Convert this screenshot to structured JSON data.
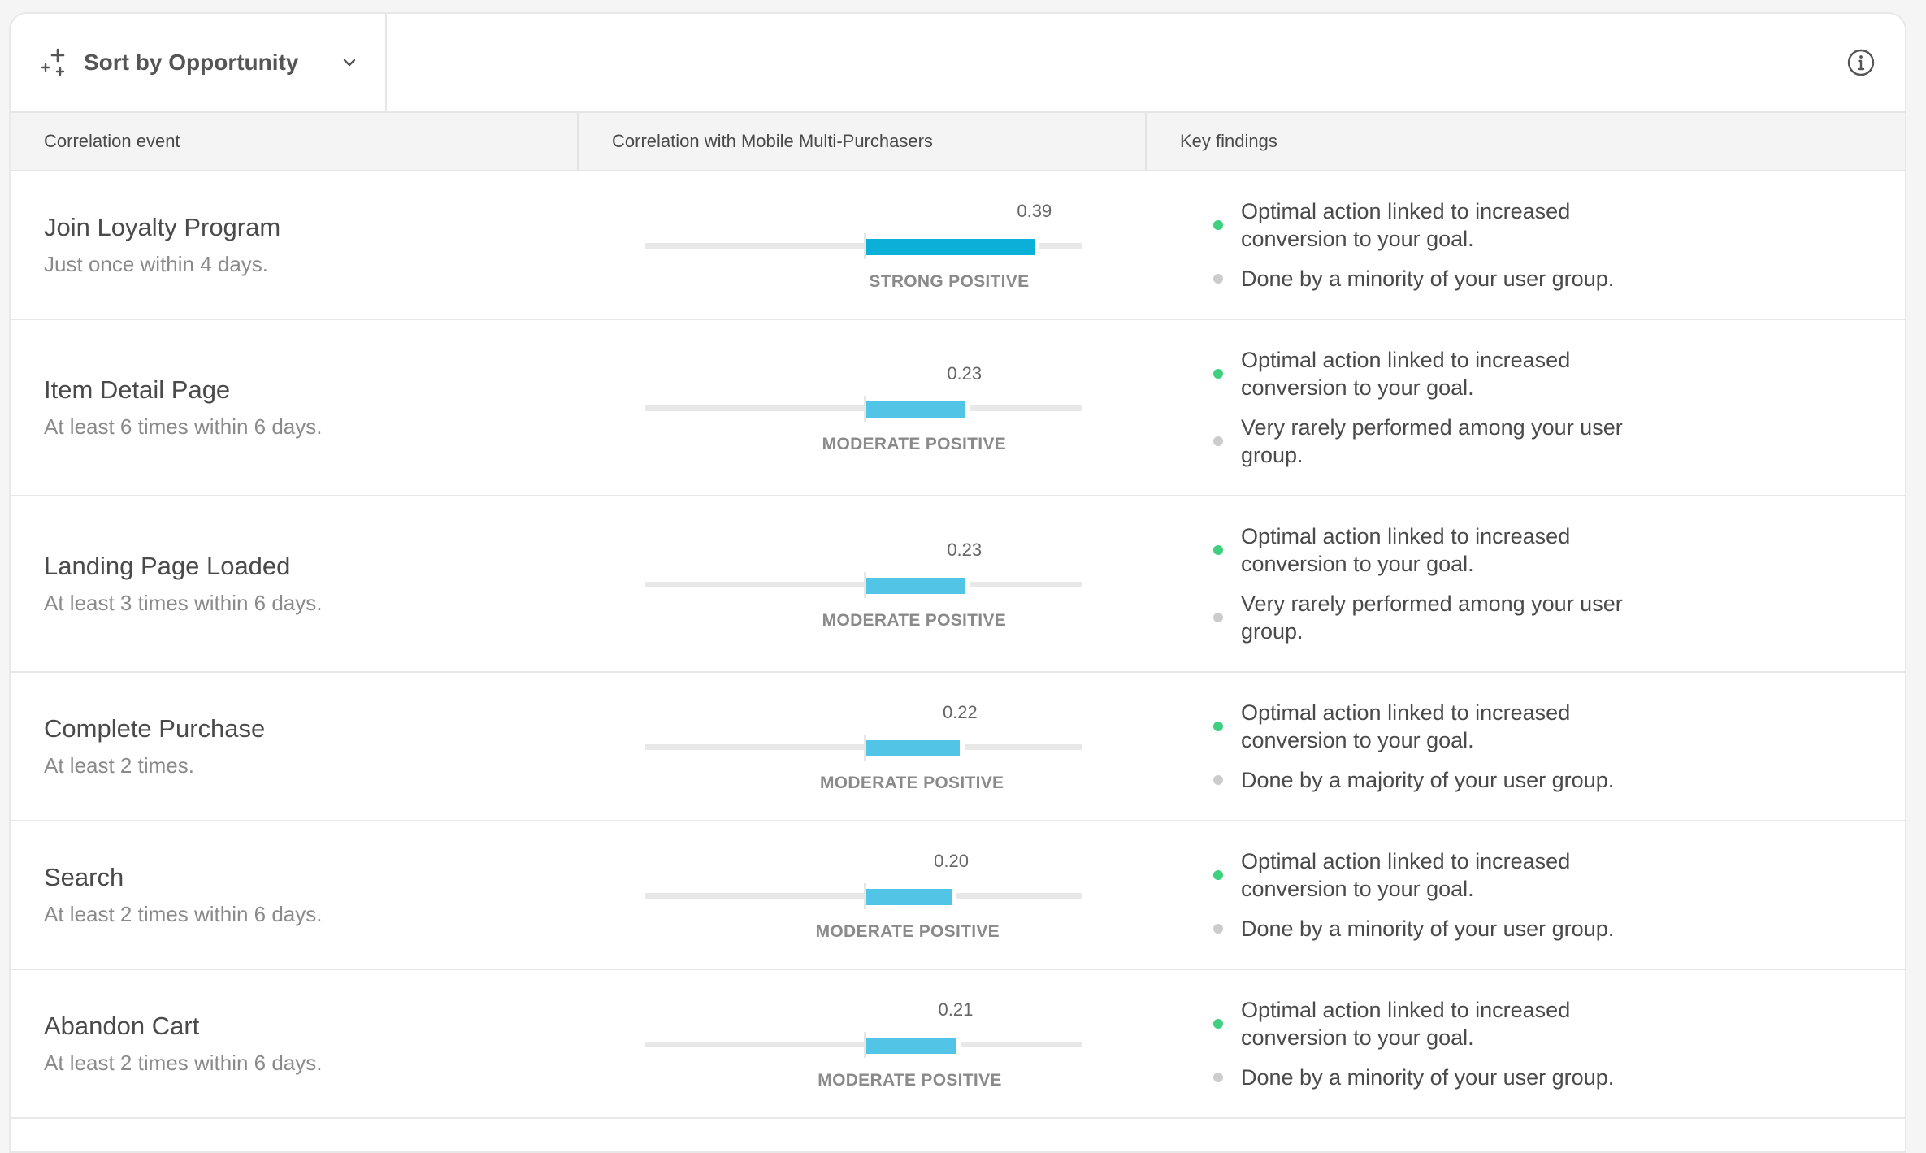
{
  "toolbar": {
    "sort_label": "Sort by Opportunity",
    "sort_icon": "sparkle-icon",
    "info_icon": "info-icon"
  },
  "columns": [
    "Correlation event",
    "Correlation with Mobile Multi-Purchasers",
    "Key findings"
  ],
  "colors": {
    "strong": "#0bb0d8",
    "moderate": "#52c5e6",
    "positive_dot": "#3ecf7f",
    "neutral_dot": "#cccccc"
  },
  "correlation_scale": [
    -0.5,
    0.5
  ],
  "rows": [
    {
      "name": "Join Loyalty Program",
      "sub": "Just once within 4 days.",
      "value": 0.39,
      "value_label": "0.39",
      "strength": "STRONG POSITIVE",
      "level": "strong",
      "findings": [
        {
          "text": "Optimal action linked to increased conversion to your goal.",
          "type": "positive"
        },
        {
          "text": "Done by a minority of your user group.",
          "type": "neutral"
        }
      ]
    },
    {
      "name": "Item Detail Page",
      "sub": "At least 6 times within 6 days.",
      "value": 0.23,
      "value_label": "0.23",
      "strength": "MODERATE POSITIVE",
      "level": "moderate",
      "findings": [
        {
          "text": "Optimal action linked to increased conversion to your goal.",
          "type": "positive"
        },
        {
          "text": "Very rarely performed among your user group.",
          "type": "neutral"
        }
      ]
    },
    {
      "name": "Landing Page Loaded",
      "sub": "At least 3 times within 6 days.",
      "value": 0.23,
      "value_label": "0.23",
      "strength": "MODERATE POSITIVE",
      "level": "moderate",
      "findings": [
        {
          "text": "Optimal action linked to increased conversion to your goal.",
          "type": "positive"
        },
        {
          "text": "Very rarely performed among your user group.",
          "type": "neutral"
        }
      ]
    },
    {
      "name": "Complete Purchase",
      "sub": "At least 2 times.",
      "value": 0.22,
      "value_label": "0.22",
      "strength": "MODERATE POSITIVE",
      "level": "moderate",
      "findings": [
        {
          "text": "Optimal action linked to increased conversion to your goal.",
          "type": "positive"
        },
        {
          "text": "Done by a majority of your user group.",
          "type": "neutral"
        }
      ]
    },
    {
      "name": "Search",
      "sub": "At least 2 times within 6 days.",
      "value": 0.2,
      "value_label": "0.20",
      "strength": "MODERATE POSITIVE",
      "level": "moderate",
      "findings": [
        {
          "text": "Optimal action linked to increased conversion to your goal.",
          "type": "positive"
        },
        {
          "text": "Done by a minority of your user group.",
          "type": "neutral"
        }
      ]
    },
    {
      "name": "Abandon Cart",
      "sub": "At least 2 times within 6 days.",
      "value": 0.21,
      "value_label": "0.21",
      "strength": "MODERATE POSITIVE",
      "level": "moderate",
      "findings": [
        {
          "text": "Optimal action linked to increased conversion to your goal.",
          "type": "positive"
        },
        {
          "text": "Done by a minority of your user group.",
          "type": "neutral"
        }
      ]
    }
  ]
}
